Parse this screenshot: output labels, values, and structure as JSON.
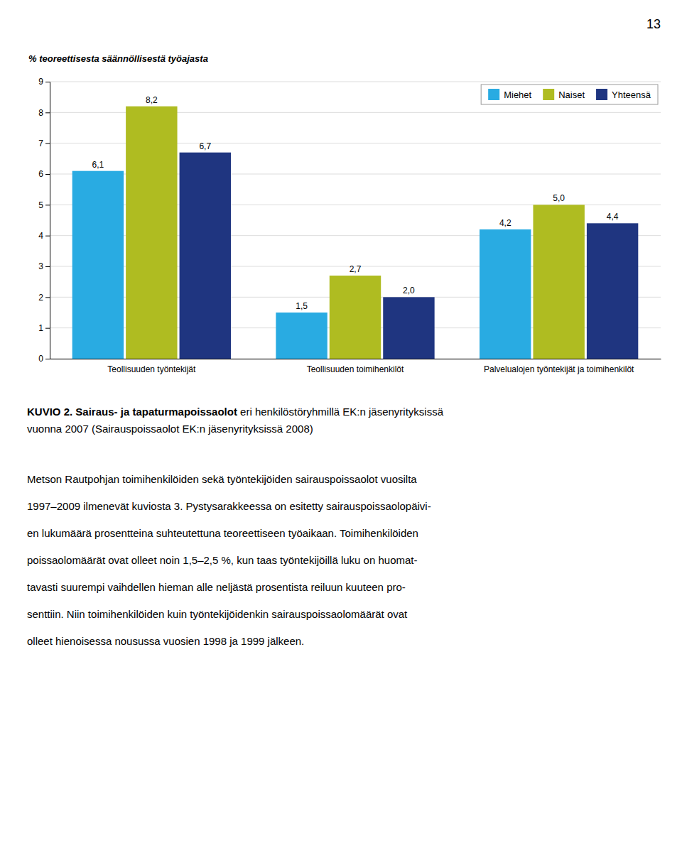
{
  "chart_data": {
    "type": "bar",
    "ylabel": "% teoreettisesta säännöllisestä työajasta",
    "categories": [
      "Teollisuuden työntekijät",
      "Teollisuuden toimihenkilöt",
      "Palvelualojen työntekijät ja toimihenkilöt"
    ],
    "series": [
      {
        "name": "Miehet",
        "color": "#29ABE2",
        "values": [
          6.1,
          1.5,
          4.2
        ],
        "value_labels": [
          "6,1",
          "1,5",
          "4,2"
        ]
      },
      {
        "name": "Naiset",
        "color": "#AFBC21",
        "values": [
          8.2,
          2.7,
          5.0
        ],
        "value_labels": [
          "8,2",
          "2,7",
          "5,0"
        ]
      },
      {
        "name": "Yhteensä",
        "color": "#1F3580",
        "values": [
          6.7,
          2.0,
          4.4
        ],
        "value_labels": [
          "6,7",
          "2,0",
          "4,4"
        ]
      }
    ],
    "ylim": [
      0,
      9
    ],
    "yticks": [
      0,
      1,
      2,
      3,
      4,
      5,
      6,
      7,
      8,
      9
    ],
    "grid": true,
    "legend": "upper right",
    "data_labels": true
  },
  "page_number": "13",
  "caption_lines": [
    [
      "KUVIO 2. Sairaus- ja tapaturmapoissaolot",
      " eri henkilöstöryhmillä EK:n jäsenyrityksissä"
    ],
    [
      "vuonna 2007 (Sairauspoissaolot EK:n jäsenyrityksissä 2008)"
    ]
  ],
  "body_lines": [
    "Metson Rautpohjan toimihenkilöiden sekä työntekijöiden sairauspoissaolot vuosilta",
    "1997–2009 ilmenevät kuviosta 3. Pystysarakkeessa on esitetty sairauspoissaolopäivi-",
    "en lukumäärä prosentteina suhteutettuna teoreettiseen työaikaan. Toimihenkilöiden",
    "poissaolomäärät ovat olleet noin 1,5–2,5 %, kun taas työntekijöillä luku on huomat-",
    "tavasti suurempi vaihdellen hieman alle neljästä prosentista reiluun kuuteen pro-",
    "senttiin. Niin toimihenkilöiden kuin työntekijöidenkin sairauspoissaolomäärät ovat",
    "olleet hienoisessa nousussa vuosien 1998 ja 1999 jälkeen."
  ]
}
